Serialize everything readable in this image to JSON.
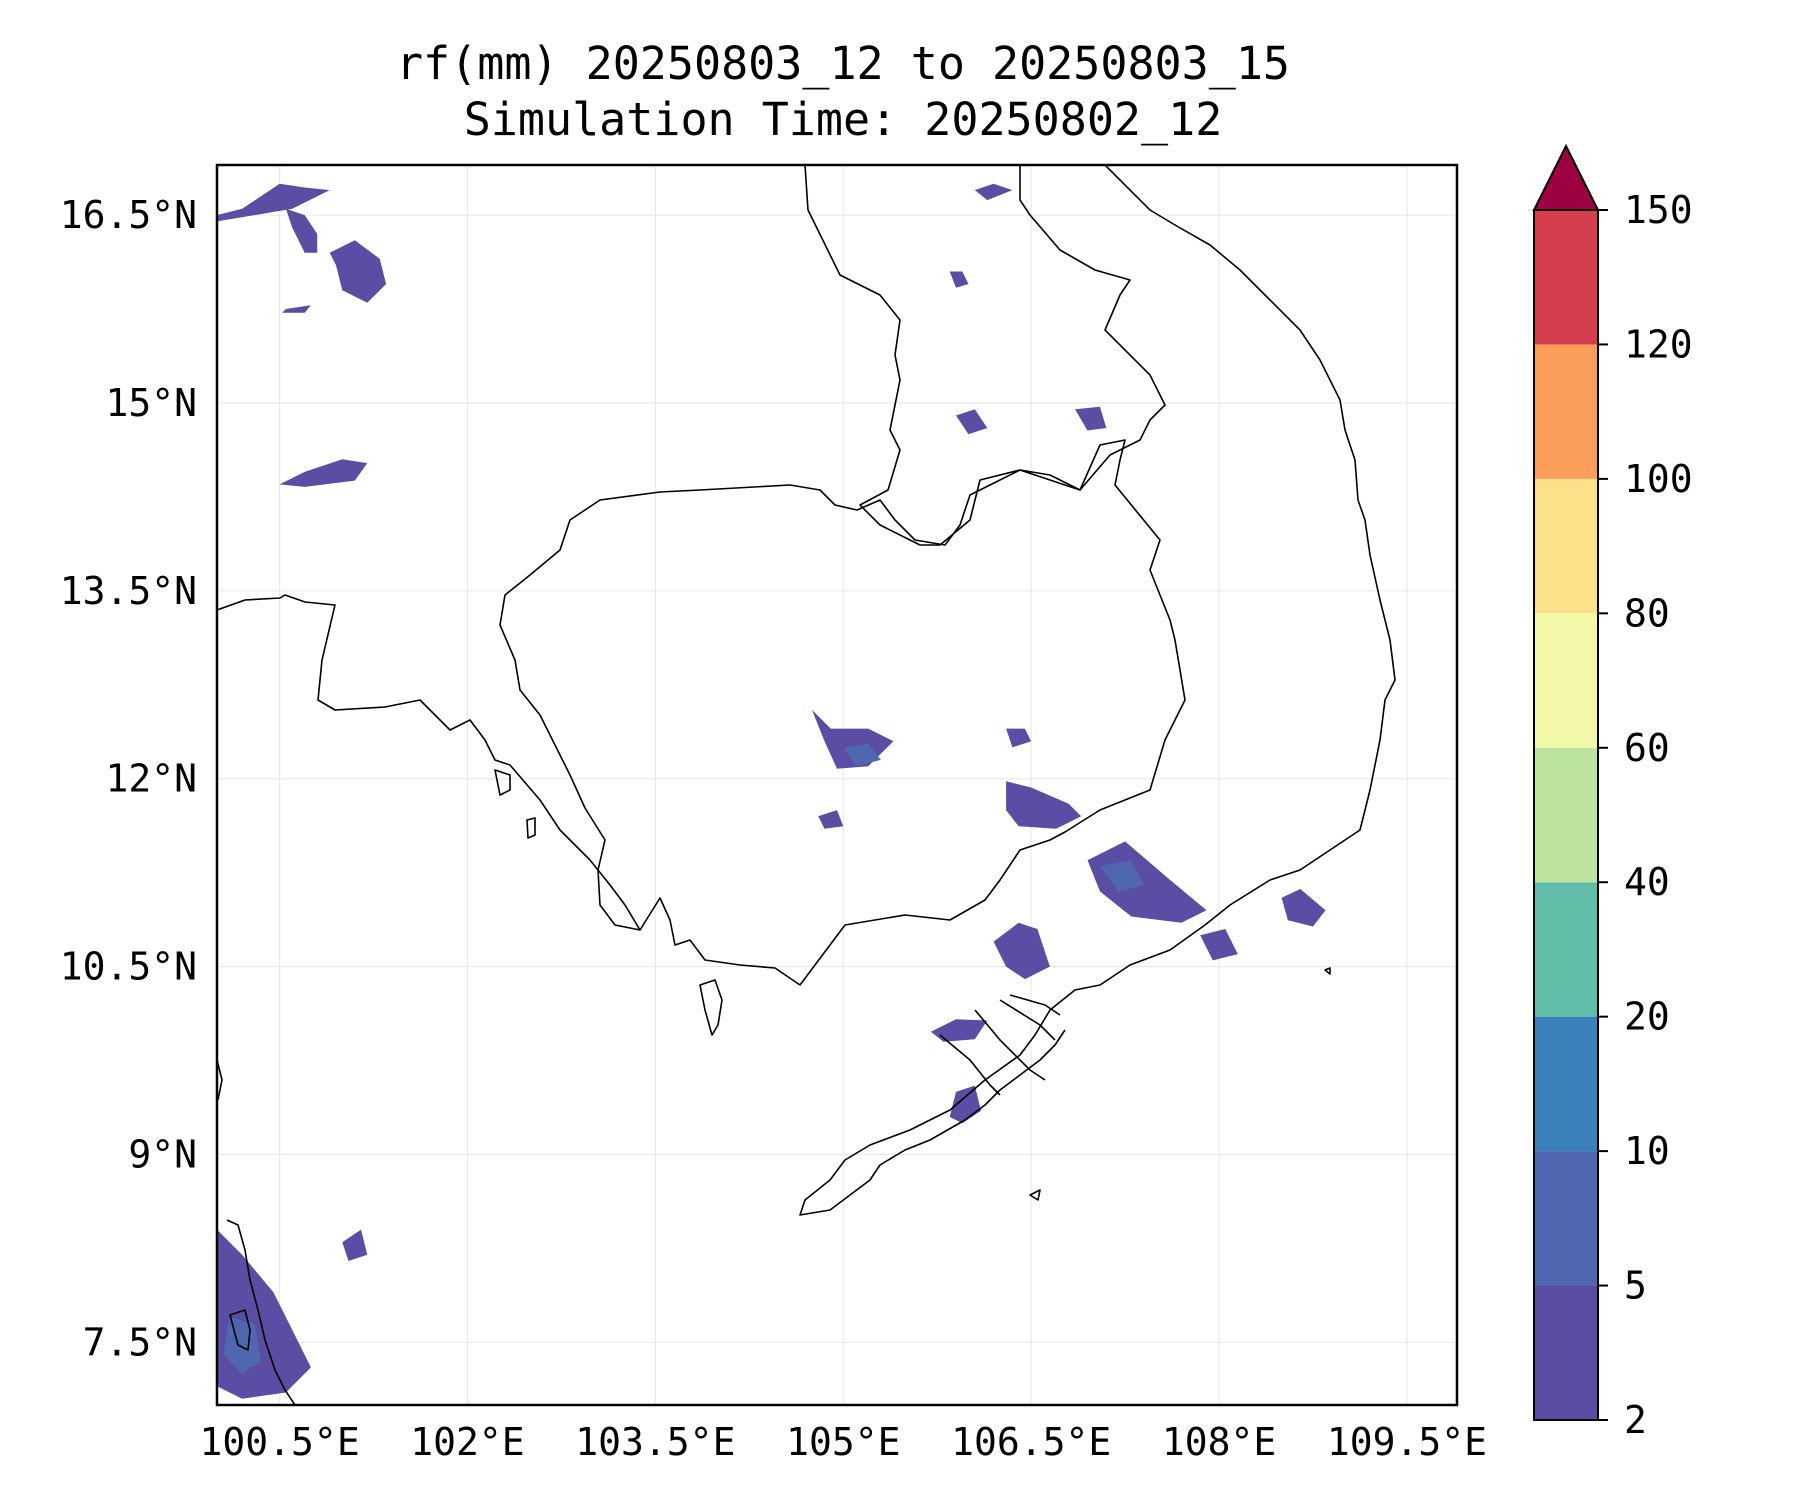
{
  "title": {
    "line1": "rf(mm) 20250803_12 to 20250803_15",
    "line2": "Simulation Time: 20250802_12"
  },
  "map": {
    "type": "precipitation-contour-map",
    "variable": "rf(mm)",
    "lon_range": [
      100.0,
      109.9
    ],
    "lat_range": [
      7.0,
      16.9
    ],
    "gridlines": true,
    "lon_ticks": [
      {
        "value": 100.5,
        "label": "100.5°E"
      },
      {
        "value": 102.0,
        "label": "102°E"
      },
      {
        "value": 103.5,
        "label": "103.5°E"
      },
      {
        "value": 105.0,
        "label": "105°E"
      },
      {
        "value": 106.5,
        "label": "106.5°E"
      },
      {
        "value": 108.0,
        "label": "108°E"
      },
      {
        "value": 109.5,
        "label": "109.5°E"
      }
    ],
    "lat_ticks": [
      {
        "value": 16.5,
        "label": "16.5°N"
      },
      {
        "value": 15.0,
        "label": "15°N"
      },
      {
        "value": 13.5,
        "label": "13.5°N"
      },
      {
        "value": 12.0,
        "label": "12°N"
      },
      {
        "value": 10.5,
        "label": "10.5°N"
      },
      {
        "value": 9.0,
        "label": "9°N"
      },
      {
        "value": 7.5,
        "label": "7.5°N"
      }
    ],
    "rain_areas": [
      {
        "level": 2,
        "lonlat": [
          [
            100.0,
            16.5
          ],
          [
            100.2,
            16.55
          ],
          [
            100.5,
            16.75
          ],
          [
            100.7,
            16.72
          ],
          [
            100.9,
            16.7
          ],
          [
            100.6,
            16.55
          ],
          [
            100.0,
            16.45
          ]
        ]
      },
      {
        "level": 2,
        "lonlat": [
          [
            100.55,
            16.55
          ],
          [
            100.7,
            16.5
          ],
          [
            100.8,
            16.35
          ],
          [
            100.8,
            16.2
          ],
          [
            100.7,
            16.2
          ],
          [
            100.6,
            16.4
          ]
        ]
      },
      {
        "level": 2,
        "lonlat": [
          [
            100.9,
            16.2
          ],
          [
            101.1,
            16.3
          ],
          [
            101.3,
            16.15
          ],
          [
            101.35,
            15.95
          ],
          [
            101.2,
            15.8
          ],
          [
            101.0,
            15.9
          ],
          [
            100.95,
            16.1
          ]
        ]
      },
      {
        "level": 2,
        "lonlat": [
          [
            100.55,
            15.75
          ],
          [
            100.75,
            15.78
          ],
          [
            100.7,
            15.72
          ],
          [
            100.52,
            15.72
          ]
        ]
      },
      {
        "level": 2,
        "lonlat": [
          [
            100.5,
            14.35
          ],
          [
            100.7,
            14.45
          ],
          [
            101.0,
            14.55
          ],
          [
            101.2,
            14.52
          ],
          [
            101.1,
            14.38
          ],
          [
            100.7,
            14.33
          ]
        ]
      },
      {
        "level": 2,
        "lonlat": [
          [
            104.75,
            12.55
          ],
          [
            104.9,
            12.4
          ],
          [
            105.2,
            12.4
          ],
          [
            105.4,
            12.3
          ],
          [
            105.2,
            12.1
          ],
          [
            104.95,
            12.08
          ],
          [
            104.85,
            12.3
          ]
        ]
      },
      {
        "level": 2,
        "lonlat": [
          [
            106.3,
            11.98
          ],
          [
            106.5,
            11.93
          ],
          [
            106.8,
            11.8
          ],
          [
            106.9,
            11.7
          ],
          [
            106.7,
            11.6
          ],
          [
            106.4,
            11.62
          ],
          [
            106.3,
            11.75
          ]
        ]
      },
      {
        "level": 2,
        "lonlat": [
          [
            106.95,
            11.35
          ],
          [
            107.25,
            11.5
          ],
          [
            107.6,
            11.2
          ],
          [
            107.9,
            10.95
          ],
          [
            107.7,
            10.85
          ],
          [
            107.3,
            10.9
          ],
          [
            107.05,
            11.1
          ]
        ]
      },
      {
        "level": 2,
        "lonlat": [
          [
            108.5,
            11.05
          ],
          [
            108.65,
            11.12
          ],
          [
            108.85,
            10.95
          ],
          [
            108.75,
            10.82
          ],
          [
            108.55,
            10.87
          ]
        ]
      },
      {
        "level": 2,
        "lonlat": [
          [
            107.85,
            10.75
          ],
          [
            108.05,
            10.8
          ],
          [
            108.15,
            10.6
          ],
          [
            107.95,
            10.55
          ]
        ]
      },
      {
        "level": 2,
        "lonlat": [
          [
            106.2,
            10.7
          ],
          [
            106.4,
            10.85
          ],
          [
            106.55,
            10.8
          ],
          [
            106.65,
            10.5
          ],
          [
            106.45,
            10.4
          ],
          [
            106.3,
            10.5
          ]
        ]
      },
      {
        "level": 2,
        "lonlat": [
          [
            105.7,
            9.98
          ],
          [
            105.9,
            10.08
          ],
          [
            106.15,
            10.07
          ],
          [
            106.05,
            9.92
          ],
          [
            105.8,
            9.9
          ]
        ]
      },
      {
        "level": 2,
        "lonlat": [
          [
            105.85,
            9.3
          ],
          [
            105.9,
            9.5
          ],
          [
            106.05,
            9.55
          ],
          [
            106.1,
            9.35
          ],
          [
            105.95,
            9.25
          ]
        ]
      },
      {
        "level": 2,
        "lonlat": [
          [
            105.9,
            14.9
          ],
          [
            106.05,
            14.95
          ],
          [
            106.15,
            14.8
          ],
          [
            106.0,
            14.75
          ]
        ]
      },
      {
        "level": 2,
        "lonlat": [
          [
            106.85,
            14.95
          ],
          [
            107.05,
            14.97
          ],
          [
            107.1,
            14.8
          ],
          [
            106.95,
            14.78
          ]
        ]
      },
      {
        "level": 2,
        "lonlat": [
          [
            105.85,
            16.05
          ],
          [
            105.95,
            16.05
          ],
          [
            106.0,
            15.95
          ],
          [
            105.9,
            15.92
          ]
        ]
      },
      {
        "level": 2,
        "lonlat": [
          [
            106.05,
            16.7
          ],
          [
            106.2,
            16.75
          ],
          [
            106.35,
            16.7
          ],
          [
            106.15,
            16.62
          ]
        ]
      },
      {
        "level": 2,
        "lonlat": [
          [
            100.0,
            8.4
          ],
          [
            100.2,
            8.2
          ],
          [
            100.45,
            7.9
          ],
          [
            100.6,
            7.6
          ],
          [
            100.75,
            7.3
          ],
          [
            100.55,
            7.1
          ],
          [
            100.2,
            7.05
          ],
          [
            100.0,
            7.15
          ]
        ]
      },
      {
        "level": 2,
        "lonlat": [
          [
            101.0,
            8.3
          ],
          [
            101.15,
            8.4
          ],
          [
            101.2,
            8.2
          ],
          [
            101.05,
            8.15
          ]
        ]
      },
      {
        "level": 2,
        "lonlat": [
          [
            106.3,
            12.4
          ],
          [
            106.45,
            12.4
          ],
          [
            106.5,
            12.3
          ],
          [
            106.35,
            12.25
          ]
        ]
      },
      {
        "level": 2,
        "lonlat": [
          [
            104.8,
            11.7
          ],
          [
            104.95,
            11.75
          ],
          [
            105.0,
            11.62
          ],
          [
            104.85,
            11.6
          ]
        ]
      },
      {
        "level": 5,
        "lonlat": [
          [
            105.0,
            12.25
          ],
          [
            105.2,
            12.28
          ],
          [
            105.3,
            12.15
          ],
          [
            105.1,
            12.1
          ]
        ]
      },
      {
        "level": 5,
        "lonlat": [
          [
            100.1,
            7.7
          ],
          [
            100.3,
            7.65
          ],
          [
            100.35,
            7.35
          ],
          [
            100.2,
            7.25
          ],
          [
            100.05,
            7.4
          ]
        ]
      },
      {
        "level": 5,
        "lonlat": [
          [
            107.05,
            11.3
          ],
          [
            107.3,
            11.35
          ],
          [
            107.4,
            11.15
          ],
          [
            107.2,
            11.1
          ]
        ]
      }
    ]
  },
  "colorbar": {
    "levels": [
      2,
      5,
      10,
      20,
      40,
      60,
      80,
      100,
      120,
      150
    ],
    "labels": [
      "2",
      "5",
      "10",
      "20",
      "40",
      "60",
      "80",
      "100",
      "120",
      "150"
    ],
    "colors": [
      "#5a4da3",
      "#4e67ae",
      "#3a80ba",
      "#62bda9",
      "#bde3a1",
      "#f3f9a8",
      "#fce089",
      "#f99d59",
      "#d53e4f",
      "#9e0142"
    ],
    "extend": "max"
  },
  "style": {
    "coast_color": "#000000",
    "grid_color": "#e6e6e6"
  }
}
